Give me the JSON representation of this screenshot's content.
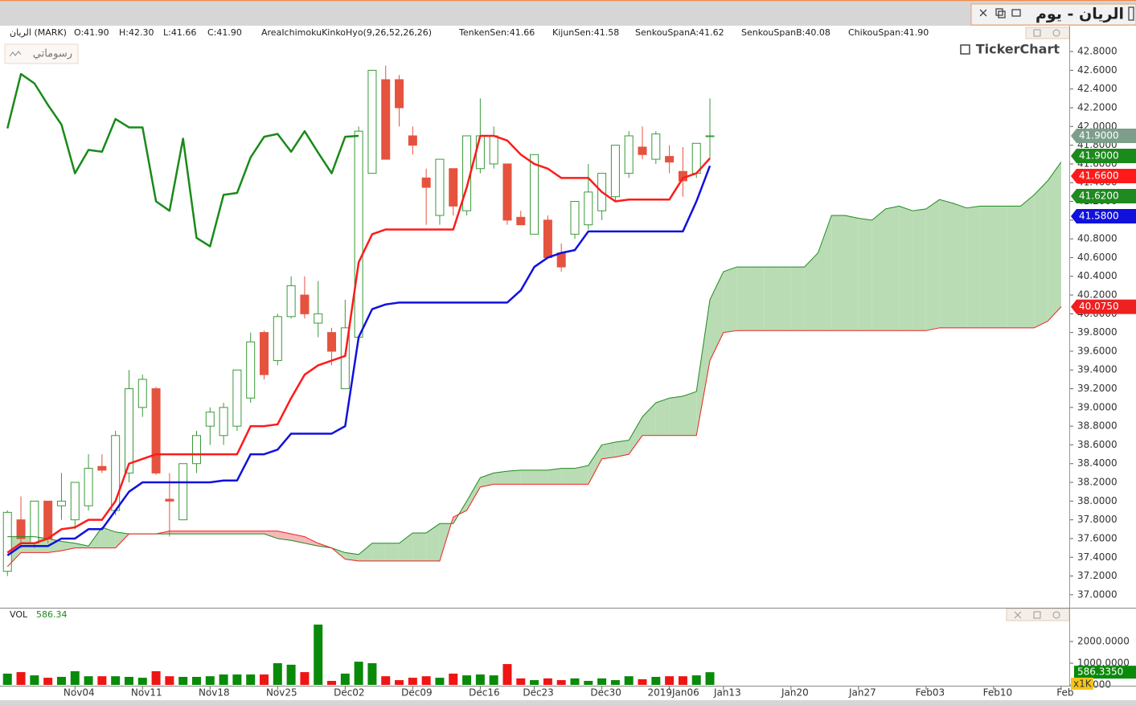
{
  "window": {
    "title": "الريان - يوم",
    "drawings_button": "رسوماتي",
    "watermark": "TickerChart"
  },
  "chart_data": [
    {
      "type": "candlestick",
      "symbol": "الريان (MARK)",
      "ohlc_labels": [
        "O:41.90",
        "H:42.30",
        "L:41.66",
        "C:41.90"
      ],
      "indicator": "AreaIchimokuKinkoHyo(9,26,52,26,26)",
      "indicator_color": "#ff0000",
      "up_color": "#3a9a3a",
      "down_color": "#e5533f",
      "close_label": "41.9000",
      "close_label_color": "#7d9e8b",
      "cloud_up_color": "#b9dcb4",
      "cloud_down_color": "#f5b8b8",
      "xlim": [
        -0.55,
        78.6
      ],
      "ylim": [
        36.87,
        43.05
      ],
      "yticks": [
        {
          "value": 37,
          "label": "37.0000"
        },
        {
          "value": 37.2,
          "label": "37.2000"
        },
        {
          "value": 37.4,
          "label": "37.4000"
        },
        {
          "value": 37.6,
          "label": "37.6000"
        },
        {
          "value": 37.8,
          "label": "37.8000"
        },
        {
          "value": 38,
          "label": "38.0000"
        },
        {
          "value": 38.2,
          "label": "38.2000"
        },
        {
          "value": 38.4,
          "label": "38.4000"
        },
        {
          "value": 38.6,
          "label": "38.6000"
        },
        {
          "value": 38.8,
          "label": "38.8000"
        },
        {
          "value": 39,
          "label": "39.0000"
        },
        {
          "value": 39.2,
          "label": "39.2000"
        },
        {
          "value": 39.4,
          "label": "39.4000"
        },
        {
          "value": 39.6,
          "label": "39.6000"
        },
        {
          "value": 39.8,
          "label": "39.8000"
        },
        {
          "value": 40,
          "label": "40.0000"
        },
        {
          "value": 40.2,
          "label": "40.2000"
        },
        {
          "value": 40.4,
          "label": "40.4000"
        },
        {
          "value": 40.6,
          "label": "40.6000"
        },
        {
          "value": 40.8,
          "label": "40.8000"
        },
        {
          "value": 41,
          "label": "41.0000"
        },
        {
          "value": 41.2,
          "label": "41.2000"
        },
        {
          "value": 41.4,
          "label": "41.4000"
        },
        {
          "value": 41.6,
          "label": "41.6000"
        },
        {
          "value": 41.8,
          "label": "41.8000"
        },
        {
          "value": 42,
          "label": "42.0000"
        },
        {
          "value": 42.2,
          "label": "42.2000"
        },
        {
          "value": 42.4,
          "label": "42.4000"
        },
        {
          "value": 42.6,
          "label": "42.6000"
        },
        {
          "value": 42.8,
          "label": "42.8000"
        }
      ],
      "open": [
        37.25,
        37.8,
        37.55,
        38.0,
        37.95,
        37.8,
        37.95,
        38.37,
        37.9,
        38.3,
        39.0,
        39.2,
        38.02,
        37.8,
        38.4,
        38.8,
        38.7,
        38.8,
        39.1,
        39.8,
        39.5,
        39.97,
        40.2,
        39.9,
        39.8,
        39.2,
        39.75,
        41.5,
        42.5,
        42.5,
        41.9,
        41.45,
        41.05,
        41.55,
        41.1,
        41.55,
        41.6,
        41.6,
        41.03,
        40.85,
        41.0,
        40.65,
        40.85,
        40.95,
        41.1,
        41.25,
        41.5,
        41.78,
        41.65,
        41.68,
        41.52,
        41.5,
        41.9
      ],
      "high": [
        37.9,
        38.05,
        38.0,
        38.0,
        38.3,
        38.2,
        38.5,
        38.5,
        38.75,
        39.4,
        39.35,
        39.22,
        38.3,
        38.4,
        38.75,
        39.0,
        39.05,
        39.4,
        39.8,
        39.82,
        40.0,
        40.4,
        40.4,
        40.35,
        39.85,
        40.15,
        42.0,
        42.6,
        42.65,
        42.55,
        42.0,
        41.55,
        41.65,
        41.55,
        41.9,
        42.3,
        42.0,
        41.6,
        41.1,
        41.7,
        41.05,
        40.75,
        41.2,
        41.6,
        41.5,
        41.8,
        41.95,
        42.0,
        41.95,
        41.8,
        41.78,
        41.82,
        42.3
      ],
      "low": [
        37.2,
        37.5,
        37.5,
        37.55,
        37.8,
        37.7,
        37.9,
        38.3,
        37.85,
        38.2,
        38.9,
        38.28,
        37.62,
        37.8,
        38.3,
        38.6,
        38.6,
        38.75,
        39.05,
        39.3,
        39.45,
        39.95,
        39.95,
        39.75,
        39.45,
        39.2,
        39.75,
        41.5,
        41.65,
        42.0,
        41.7,
        40.95,
        40.95,
        41.05,
        41.05,
        41.5,
        41.55,
        40.95,
        40.95,
        40.85,
        40.6,
        40.45,
        40.8,
        40.9,
        41.0,
        41.2,
        41.45,
        41.65,
        41.6,
        41.5,
        41.25,
        41.45,
        41.66
      ],
      "close": [
        37.88,
        37.6,
        38.0,
        37.6,
        38.0,
        38.2,
        38.35,
        38.33,
        38.7,
        39.2,
        39.3,
        38.3,
        38.0,
        38.4,
        38.7,
        38.95,
        39.0,
        39.4,
        39.7,
        39.35,
        39.97,
        40.3,
        40.0,
        40.0,
        39.6,
        39.85,
        41.95,
        42.6,
        41.65,
        42.2,
        41.8,
        41.35,
        41.65,
        41.15,
        41.9,
        41.9,
        41.9,
        41.0,
        40.95,
        41.7,
        40.6,
        40.5,
        41.2,
        41.3,
        41.5,
        41.8,
        41.9,
        41.7,
        41.92,
        41.62,
        41.42,
        41.82,
        41.9
      ],
      "series": [
        {
          "label": "TenkenSen:41.66",
          "color": "#ff1a1a",
          "tag": "41.6600",
          "values": [
            37.45,
            37.55,
            37.55,
            37.6,
            37.7,
            37.72,
            37.8,
            37.8,
            38.0,
            38.4,
            38.45,
            38.5,
            38.5,
            38.5,
            38.5,
            38.5,
            38.5,
            38.5,
            38.8,
            38.8,
            38.82,
            39.1,
            39.35,
            39.45,
            39.5,
            39.55,
            40.55,
            40.85,
            40.9,
            40.9,
            40.9,
            40.9,
            40.9,
            40.9,
            41.35,
            41.9,
            41.9,
            41.85,
            41.7,
            41.6,
            41.55,
            41.45,
            41.45,
            41.45,
            41.3,
            41.2,
            41.22,
            41.22,
            41.22,
            41.22,
            41.45,
            41.5,
            41.66
          ]
        },
        {
          "label": "KijunSen:41.58",
          "color": "#1111dd",
          "tag": "41.5800",
          "values": [
            37.42,
            37.52,
            37.52,
            37.52,
            37.6,
            37.6,
            37.7,
            37.7,
            37.9,
            38.1,
            38.2,
            38.2,
            38.2,
            38.2,
            38.2,
            38.2,
            38.22,
            38.22,
            38.5,
            38.5,
            38.55,
            38.72,
            38.72,
            38.72,
            38.72,
            38.8,
            39.75,
            40.05,
            40.1,
            40.12,
            40.12,
            40.12,
            40.12,
            40.12,
            40.12,
            40.12,
            40.12,
            40.12,
            40.25,
            40.5,
            40.6,
            40.65,
            40.68,
            40.88,
            40.88,
            40.88,
            40.88,
            40.88,
            40.88,
            40.88,
            40.88,
            41.2,
            41.58
          ]
        },
        {
          "label": "SenkouSpanA:41.62",
          "color": "#1f8a1f",
          "tag": "41.6200",
          "values": [
            37.62,
            37.62,
            37.62,
            37.6,
            37.57,
            37.55,
            37.52,
            37.72,
            37.67,
            37.65,
            37.65,
            37.65,
            37.65,
            37.65,
            37.65,
            37.65,
            37.65,
            37.65,
            37.65,
            37.65,
            37.6,
            37.58,
            37.55,
            37.52,
            37.5,
            37.45,
            37.43,
            37.55,
            37.55,
            37.55,
            37.66,
            37.66,
            37.76,
            37.76,
            38.0,
            38.25,
            38.3,
            38.32,
            38.33,
            38.33,
            38.33,
            38.35,
            38.35,
            38.38,
            38.6,
            38.63,
            38.65,
            38.9,
            39.05,
            39.1,
            39.12,
            39.17,
            40.15,
            40.45,
            40.5,
            40.5,
            40.5,
            40.5,
            40.5,
            40.5,
            40.65,
            41.05,
            41.05,
            41.02,
            41.0,
            41.12,
            41.15,
            41.1,
            41.12,
            41.22,
            41.18,
            41.13,
            41.15,
            41.15,
            41.15,
            41.15,
            41.27,
            41.42,
            41.62
          ]
        },
        {
          "label": "SenkouSpanB:40.08",
          "color": "#ee2020",
          "tag": "40.0750",
          "values": [
            37.3,
            37.45,
            37.45,
            37.45,
            37.47,
            37.5,
            37.5,
            37.5,
            37.5,
            37.65,
            37.65,
            37.65,
            37.68,
            37.68,
            37.68,
            37.68,
            37.68,
            37.68,
            37.68,
            37.68,
            37.68,
            37.65,
            37.62,
            37.55,
            37.5,
            37.38,
            37.36,
            37.36,
            37.36,
            37.36,
            37.36,
            37.36,
            37.36,
            37.83,
            37.9,
            38.15,
            38.18,
            38.18,
            38.18,
            38.18,
            38.18,
            38.18,
            38.18,
            38.18,
            38.45,
            38.47,
            38.5,
            38.7,
            38.7,
            38.7,
            38.7,
            38.7,
            39.5,
            39.8,
            39.82,
            39.82,
            39.82,
            39.82,
            39.82,
            39.82,
            39.82,
            39.82,
            39.82,
            39.82,
            39.82,
            39.82,
            39.82,
            39.82,
            39.82,
            39.85,
            39.85,
            39.85,
            39.85,
            39.85,
            39.85,
            39.85,
            39.85,
            39.92,
            40.075
          ]
        },
        {
          "label": "ChikouSpan:41.90",
          "color": "#1a8a1a",
          "tag": "41.9000",
          "values": [
            41.98,
            42.56,
            42.46,
            42.23,
            42.02,
            41.5,
            41.75,
            41.73,
            42.08,
            41.99,
            41.99,
            41.2,
            41.1,
            41.87,
            40.81,
            40.72,
            41.27,
            41.29,
            41.67,
            41.89,
            41.92,
            41.73,
            41.95,
            41.72,
            41.5,
            41.89,
            41.9
          ]
        }
      ]
    },
    {
      "type": "bar",
      "title": "VOL",
      "value_label": "586.34",
      "tag": "586.3350",
      "unit": "x1K",
      "up_color": "#0a8a0a",
      "down_color": "#ee1515",
      "xlim": [
        -0.55,
        78.6
      ],
      "ylim": [
        0,
        2926
      ],
      "yticks": [
        {
          "value": 0,
          "label": "0.0000"
        },
        {
          "value": 1000,
          "label": "1000.0000"
        },
        {
          "value": 2000,
          "label": "2000.0000"
        }
      ],
      "xticks": [
        {
          "value": 5,
          "label": "Nov04"
        },
        {
          "value": 10,
          "label": "Nov11"
        },
        {
          "value": 15,
          "label": "Nov18"
        },
        {
          "value": 20,
          "label": "Nov25"
        },
        {
          "value": 25,
          "label": "Dec02"
        },
        {
          "value": 30,
          "label": "Dec09"
        },
        {
          "value": 35,
          "label": "Dec16"
        },
        {
          "value": 39,
          "label": "Dec23"
        },
        {
          "value": 44,
          "label": "Dec30"
        },
        {
          "value": 49,
          "label": "2019Jan06"
        },
        {
          "value": 53,
          "label": "Jan13"
        },
        {
          "value": 58,
          "label": "Jan20"
        },
        {
          "value": 63,
          "label": "Jan27"
        },
        {
          "value": 68,
          "label": "Feb03"
        },
        {
          "value": 73,
          "label": "Feb10"
        },
        {
          "value": 78,
          "label": "Feb"
        }
      ],
      "values": [
        520,
        590,
        440,
        330,
        370,
        630,
        400,
        400,
        400,
        370,
        330,
        630,
        400,
        370,
        370,
        400,
        480,
        480,
        480,
        480,
        1000,
        930,
        590,
        2780,
        185,
        520,
        1070,
        1000,
        400,
        220,
        330,
        400,
        330,
        520,
        440,
        480,
        440,
        960,
        300,
        220,
        300,
        220,
        300,
        185,
        300,
        220,
        400,
        260,
        370,
        400,
        400,
        440,
        586.335
      ]
    }
  ]
}
